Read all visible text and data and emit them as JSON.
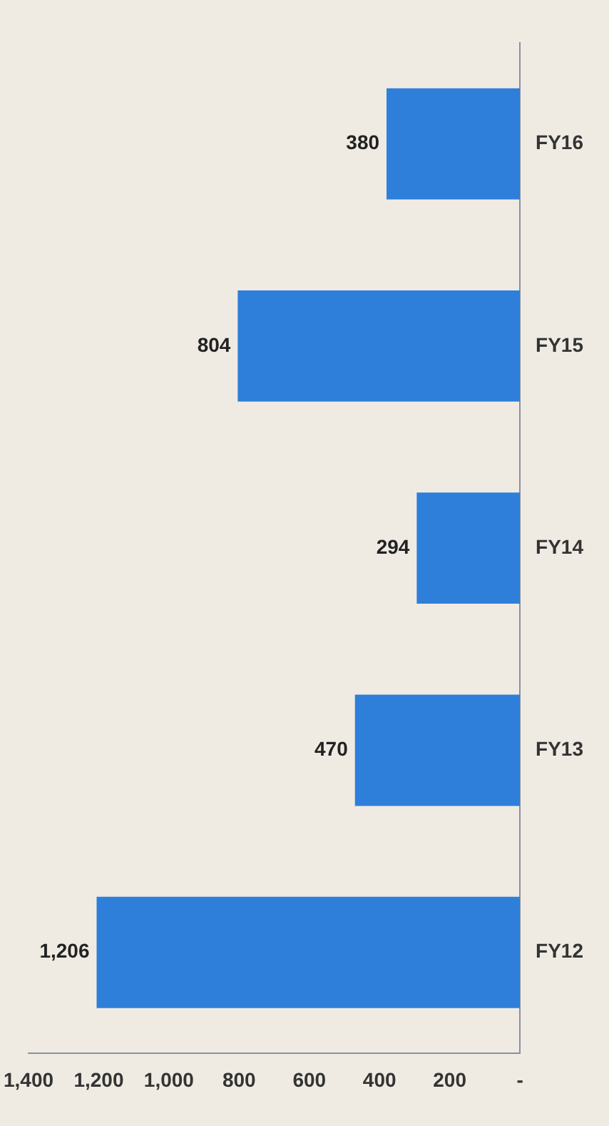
{
  "chart_data": {
    "type": "bar",
    "orientation": "horizontal",
    "categories": [
      "FY16",
      "FY15",
      "FY14",
      "FY13",
      "FY12"
    ],
    "values": [
      380,
      804,
      294,
      470,
      1206
    ],
    "value_labels": [
      "380",
      "804",
      "294",
      "470",
      "1,206"
    ],
    "color": "#2e7fd9",
    "xlim": [
      1400,
      0
    ],
    "xticks": [
      {
        "value": 0,
        "label": "-"
      },
      {
        "value": 200,
        "label": "200"
      },
      {
        "value": 400,
        "label": "400"
      },
      {
        "value": 600,
        "label": "600"
      },
      {
        "value": 800,
        "label": "800"
      },
      {
        "value": 1000,
        "label": "1,000"
      },
      {
        "value": 1200,
        "label": "1,200"
      },
      {
        "value": 1400,
        "label": "1,400"
      }
    ],
    "grid": false,
    "legend": false
  }
}
